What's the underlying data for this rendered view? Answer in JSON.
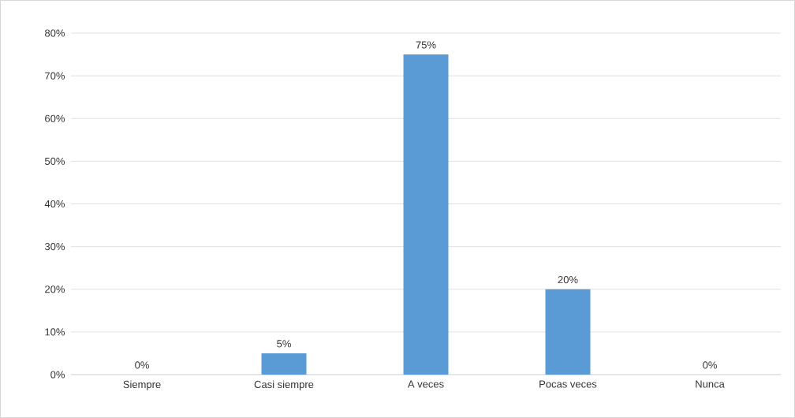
{
  "chart_data": {
    "type": "bar",
    "categories": [
      "Siempre",
      "Casi siempre",
      "A veces",
      "Pocas veces",
      "Nunca"
    ],
    "values": [
      0,
      5,
      75,
      20,
      0
    ],
    "value_labels": [
      "0%",
      "5%",
      "75%",
      "20%",
      "0%"
    ],
    "color": "#5b9bd5",
    "ylim": [
      0,
      80
    ],
    "yticks": [
      {
        "value": 0,
        "label": "0%"
      },
      {
        "value": 10,
        "label": "10%"
      },
      {
        "value": 20,
        "label": "20%"
      },
      {
        "value": 30,
        "label": "30%"
      },
      {
        "value": 40,
        "label": "40%"
      },
      {
        "value": 50,
        "label": "50%"
      },
      {
        "value": 60,
        "label": "60%"
      },
      {
        "value": 70,
        "label": "70%"
      },
      {
        "value": 80,
        "label": "80%"
      }
    ],
    "grid": "y"
  }
}
